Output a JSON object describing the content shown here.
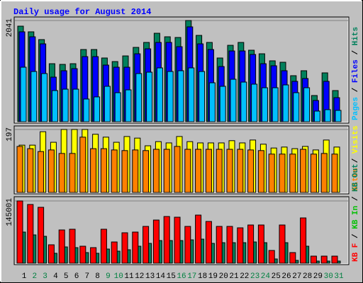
{
  "title": "Daily usage for August 2014",
  "categories": [
    "1",
    "2",
    "3",
    "4",
    "5",
    "6",
    "7",
    "8",
    "9",
    "10",
    "11",
    "12",
    "13",
    "14",
    "15",
    "16",
    "17",
    "18",
    "19",
    "20",
    "21",
    "22",
    "23",
    "24",
    "25",
    "26",
    "27",
    "28",
    "29",
    "30",
    "31"
  ],
  "category_colors": [
    "#000000",
    "#008040",
    "#008040",
    "#000000",
    "#000000",
    "#000000",
    "#000000",
    "#000000",
    "#008040",
    "#008040",
    "#000000",
    "#000000",
    "#000000",
    "#000000",
    "#000000",
    "#008040",
    "#008040",
    "#000000",
    "#000000",
    "#000000",
    "#000000",
    "#000000",
    "#008040",
    "#008040",
    "#000000",
    "#000000",
    "#000000",
    "#000000",
    "#000000",
    "#008040",
    "#008040"
  ],
  "legend_separator": " / ",
  "chart_data": [
    {
      "type": "bar",
      "ylim": [
        0,
        2041
      ],
      "yticks": [
        2041
      ],
      "series": [
        {
          "name": "Pages",
          "color": "#00c0ff",
          "values": [
            1099,
            1013,
            971,
            628,
            656,
            656,
            457,
            500,
            714,
            585,
            642,
            971,
            999,
            1085,
            1013,
            1028,
            1085,
            1013,
            785,
            714,
            856,
            799,
            757,
            685,
            685,
            742,
            585,
            685,
            214,
            243,
            228
          ]
        },
        {
          "name": "Files",
          "color": "#0000ff",
          "values": [
            1813,
            1713,
            1570,
            899,
            1028,
            1070,
            1313,
            1313,
            1142,
            1099,
            1099,
            1370,
            1470,
            1599,
            1599,
            1513,
            1913,
            1570,
            1456,
            1113,
            1427,
            1427,
            1356,
            1170,
            1128,
            1028,
            814,
            871,
            428,
            814,
            485
          ]
        },
        {
          "name": "Hits",
          "color": "#00805c",
          "values": [
            1927,
            1813,
            1656,
            1170,
            1156,
            1170,
            1456,
            1456,
            1285,
            1213,
            1327,
            1499,
            1599,
            1784,
            1713,
            1699,
            2041,
            1741,
            1599,
            1285,
            1541,
            1599,
            1442,
            1370,
            1228,
            1199,
            928,
            1028,
            528,
            985,
            628
          ]
        }
      ]
    },
    {
      "type": "bar",
      "ylim": [
        0,
        197
      ],
      "yticks": [
        197
      ],
      "series": [
        {
          "name": "Sites",
          "color": "#ff8000",
          "values": [
            144,
            137,
            128,
            133,
            122,
            122,
            173,
            137,
            137,
            133,
            131,
            133,
            131,
            135,
            135,
            144,
            135,
            135,
            135,
            135,
            135,
            135,
            133,
            131,
            120,
            120,
            120,
            135,
            120,
            122,
            120
          ]
        },
        {
          "name": "Visits",
          "color": "#ffff00",
          "values": [
            148,
            148,
            190,
            157,
            197,
            197,
            197,
            182,
            173,
            157,
            175,
            170,
            146,
            159,
            155,
            175,
            159,
            155,
            155,
            155,
            162,
            155,
            164,
            151,
            139,
            142,
            137,
            144,
            133,
            164,
            142
          ]
        }
      ]
    },
    {
      "type": "bar",
      "ylim": [
        0,
        145001
      ],
      "yticks": [
        145001
      ],
      "series": [
        {
          "name": "KB F",
          "color": "#ff0000",
          "values": [
            145001,
            136760,
            130170,
            42840,
            77440,
            79090,
            39545,
            36250,
            79090,
            49430,
            70850,
            72500,
            85680,
            100510,
            108750,
            107100,
            85680,
            112040,
            97215,
            85680,
            85680,
            82385,
            88975,
            88975,
            29660,
            88975,
            24715,
            105450,
            16480,
            16480,
            16480
          ]
        },
        {
          "name": "KB In",
          "color": "#00c000"
        },
        {
          "name": "KB Out",
          "color": "#00805c",
          "values": [
            72500,
            65910,
            62610,
            23070,
            37900,
            36250,
            24715,
            23070,
            32955,
            28010,
            31305,
            39545,
            46135,
            52725,
            52725,
            52725,
            54375,
            56020,
            46135,
            47785,
            47785,
            47785,
            49430,
            47785,
            9885,
            47785,
            6590,
            39545,
            4945,
            4945,
            4945
          ]
        }
      ]
    }
  ]
}
